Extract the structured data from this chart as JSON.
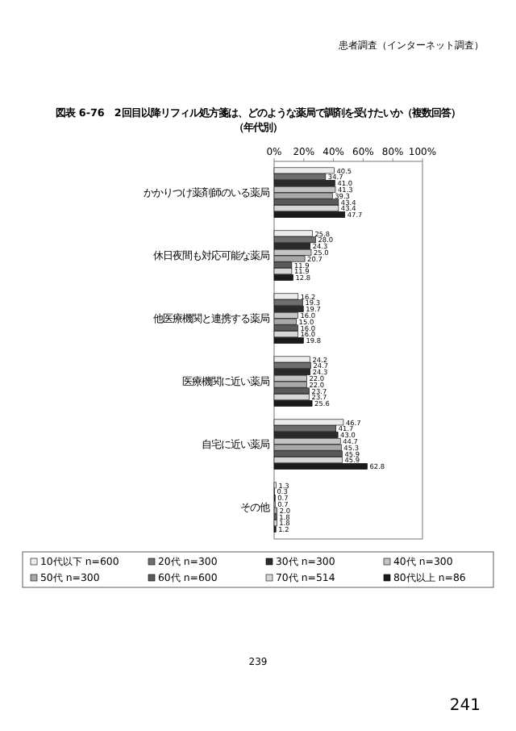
{
  "chart_data": {
    "type": "bar",
    "orientation": "horizontal",
    "title": "図表 6-76　2回目以降リフィル処方箋は、どのような薬局で調剤を受けたいか（複数回答）",
    "subtitle": "（年代別）",
    "annotations": [
      "患者調査（インターネット調査）",
      "239",
      "241"
    ],
    "categories": [
      "かかりつけ薬剤師のいる薬局",
      "休日夜間も対応可能な薬局",
      "他医療機関と連携する薬局",
      "医療機関に近い薬局",
      "自宅に近い薬局",
      "その他"
    ],
    "series": [
      {
        "name": "10代以下 n=600",
        "color": "#ececec",
        "values": [
          40.5,
          25.8,
          16.2,
          24.2,
          46.7,
          1.3
        ],
        "value_labels": [
          "40.5",
          "25.8",
          "16.2",
          "24.2",
          "46.7",
          "1.3"
        ]
      },
      {
        "name": "20代 n=300",
        "color": "#6e6e6e",
        "values": [
          34.7,
          28.0,
          19.3,
          24.7,
          41.7,
          0.3
        ],
        "value_labels": [
          "34.7",
          "28.0",
          "19.3",
          "24.7",
          "41.7",
          "0.3"
        ]
      },
      {
        "name": "30代 n=300",
        "color": "#2a2a2a",
        "values": [
          41.0,
          24.3,
          19.7,
          24.3,
          43.0,
          0.7
        ],
        "value_labels": [
          "41.0",
          "24.3",
          "19.7",
          "24.3",
          "43.0",
          "0.7"
        ]
      },
      {
        "name": "40代 n=300",
        "color": "#c4c4c4",
        "values": [
          41.3,
          25.0,
          16.0,
          22.0,
          44.7,
          0.7
        ],
        "value_labels": [
          "41.3",
          "25.0",
          "16.0",
          "22.0",
          "44.7",
          "0.7"
        ]
      },
      {
        "name": "50代 n=300",
        "color": "#a8a8a8",
        "values": [
          39.3,
          20.7,
          15.0,
          22.0,
          45.3,
          2.0
        ],
        "value_labels": [
          "39.3",
          "20.7",
          "15.0",
          "22.0",
          "45.3",
          "2.0"
        ]
      },
      {
        "name": "60代 n=600",
        "color": "#5a5a5a",
        "values": [
          43.4,
          11.9,
          16.0,
          23.7,
          45.9,
          1.8
        ],
        "value_labels": [
          "43.4",
          "11.9",
          "16.0",
          "23.7",
          "45.9",
          "1.8"
        ]
      },
      {
        "name": "70代 n=514",
        "color": "#d6d6d6",
        "values": [
          43.4,
          11.9,
          16.0,
          23.7,
          45.9,
          1.8
        ],
        "value_labels": [
          "43.4",
          "11.9",
          "16.0",
          "23.7",
          "45.9",
          "1.8"
        ]
      },
      {
        "name": "80代以上 n=86",
        "color": "#1a1a1a",
        "values": [
          47.7,
          12.8,
          19.8,
          25.6,
          62.8,
          1.2
        ],
        "value_labels": [
          "47.7",
          "12.8",
          "19.8",
          "25.6",
          "62.8",
          "1.2"
        ]
      }
    ],
    "xlim": [
      0,
      100
    ],
    "xticks": [
      {
        "value": 0,
        "label": "0%"
      },
      {
        "value": 20,
        "label": "20%"
      },
      {
        "value": 40,
        "label": "40%"
      },
      {
        "value": 60,
        "label": "60%"
      },
      {
        "value": 80,
        "label": "80%"
      },
      {
        "value": 100,
        "label": "100%"
      }
    ],
    "legend": "bottom"
  }
}
